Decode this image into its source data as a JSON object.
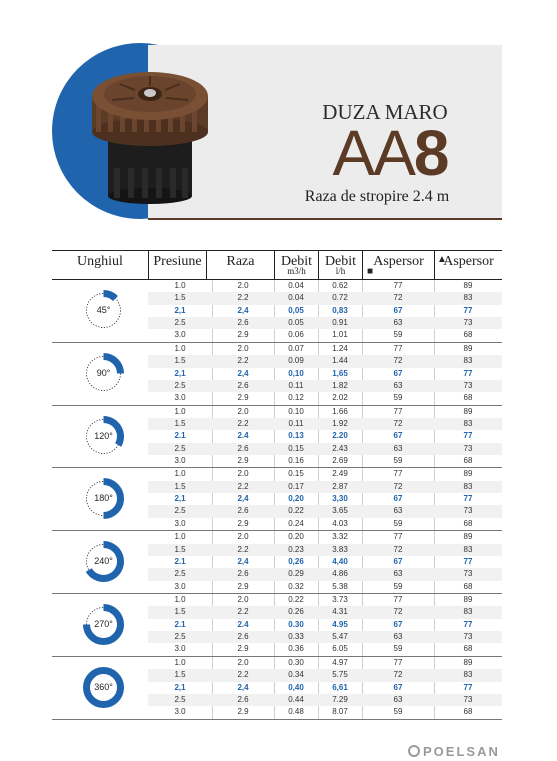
{
  "header": {
    "product_label": "DUZA MARO",
    "model_prefix": "AA",
    "model_number": "8",
    "spray_radius": "Raza de stropire 2.4 m",
    "accent_color": "#5b3a26",
    "disc_color": "#1f64ad",
    "nozzle_image": "brown-spray-nozzle"
  },
  "table": {
    "headers": {
      "angle": "Unghiul",
      "pressure": "Presiune",
      "radius": "Raza",
      "flow_m3h": "Debit",
      "flow_m3h_unit": "m3/h",
      "flow_lh": "Debit",
      "flow_lh_unit": "l/h",
      "sprinkler_sq": "Aspersor",
      "sprinkler_tri": "Aspersor"
    },
    "groups": [
      {
        "angle": "45°",
        "fraction": 0.125,
        "rows": [
          [
            "1.0",
            "2.0",
            "0.04",
            "0.62",
            "77",
            "89"
          ],
          [
            "1.5",
            "2.2",
            "0.04",
            "0.72",
            "72",
            "83"
          ],
          [
            "2,1",
            "2,4",
            "0,05",
            "0,83",
            "67",
            "77"
          ],
          [
            "2.5",
            "2.6",
            "0.05",
            "0.91",
            "63",
            "73"
          ],
          [
            "3.0",
            "2.9",
            "0.06",
            "1.01",
            "59",
            "68"
          ]
        ]
      },
      {
        "angle": "90°",
        "fraction": 0.25,
        "rows": [
          [
            "1.0",
            "2.0",
            "0.07",
            "1.24",
            "77",
            "89"
          ],
          [
            "1.5",
            "2.2",
            "0.09",
            "1.44",
            "72",
            "83"
          ],
          [
            "2,1",
            "2,4",
            "0,10",
            "1,65",
            "67",
            "77"
          ],
          [
            "2.5",
            "2.6",
            "0.11",
            "1.82",
            "63",
            "73"
          ],
          [
            "3.0",
            "2.9",
            "0.12",
            "2.02",
            "59",
            "68"
          ]
        ]
      },
      {
        "angle": "120°",
        "fraction": 0.3333,
        "rows": [
          [
            "1.0",
            "2.0",
            "0.10",
            "1.66",
            "77",
            "89"
          ],
          [
            "1.5",
            "2.2",
            "0.11",
            "1.92",
            "72",
            "83"
          ],
          [
            "2.1",
            "2.4",
            "0.13",
            "2.20",
            "67",
            "77"
          ],
          [
            "2.5",
            "2.6",
            "0.15",
            "2.43",
            "63",
            "73"
          ],
          [
            "3.0",
            "2.9",
            "0.16",
            "2.69",
            "59",
            "68"
          ]
        ]
      },
      {
        "angle": "180°",
        "fraction": 0.5,
        "rows": [
          [
            "1.0",
            "2.0",
            "0.15",
            "2.49",
            "77",
            "89"
          ],
          [
            "1.5",
            "2.2",
            "0.17",
            "2.87",
            "72",
            "83"
          ],
          [
            "2,1",
            "2,4",
            "0,20",
            "3,30",
            "67",
            "77"
          ],
          [
            "2.5",
            "2.6",
            "0.22",
            "3.65",
            "63",
            "73"
          ],
          [
            "3.0",
            "2.9",
            "0.24",
            "4.03",
            "59",
            "68"
          ]
        ]
      },
      {
        "angle": "240°",
        "fraction": 0.6667,
        "rows": [
          [
            "1.0",
            "2.0",
            "0.20",
            "3.32",
            "77",
            "89"
          ],
          [
            "1.5",
            "2.2",
            "0.23",
            "3.83",
            "72",
            "83"
          ],
          [
            "2.1",
            "2,4",
            "0,26",
            "4,40",
            "67",
            "77"
          ],
          [
            "2.5",
            "2.6",
            "0.29",
            "4.86",
            "63",
            "73"
          ],
          [
            "3.0",
            "2.9",
            "0.32",
            "5.38",
            "59",
            "68"
          ]
        ]
      },
      {
        "angle": "270°",
        "fraction": 0.75,
        "rows": [
          [
            "1.0",
            "2.0",
            "0.22",
            "3.73",
            "77",
            "89"
          ],
          [
            "1.5",
            "2.2",
            "0.26",
            "4.31",
            "72",
            "83"
          ],
          [
            "2.1",
            "2.4",
            "0.30",
            "4.95",
            "67",
            "77"
          ],
          [
            "2.5",
            "2.6",
            "0.33",
            "5.47",
            "63",
            "73"
          ],
          [
            "3.0",
            "2.9",
            "0.36",
            "6.05",
            "59",
            "68"
          ]
        ]
      },
      {
        "angle": "360°",
        "fraction": 1.0,
        "rows": [
          [
            "1.0",
            "2.0",
            "0.30",
            "4.97",
            "77",
            "89"
          ],
          [
            "1.5",
            "2.2",
            "0.34",
            "5.75",
            "72",
            "83"
          ],
          [
            "2,1",
            "2,4",
            "0,40",
            "6,61",
            "67",
            "77"
          ],
          [
            "2.5",
            "2.6",
            "0.44",
            "7.29",
            "63",
            "73"
          ],
          [
            "3.0",
            "2.9",
            "0.48",
            "8.07",
            "59",
            "68"
          ]
        ]
      }
    ],
    "highlight_color": "#1f64ad"
  },
  "footer": {
    "brand": "POELSAN"
  }
}
